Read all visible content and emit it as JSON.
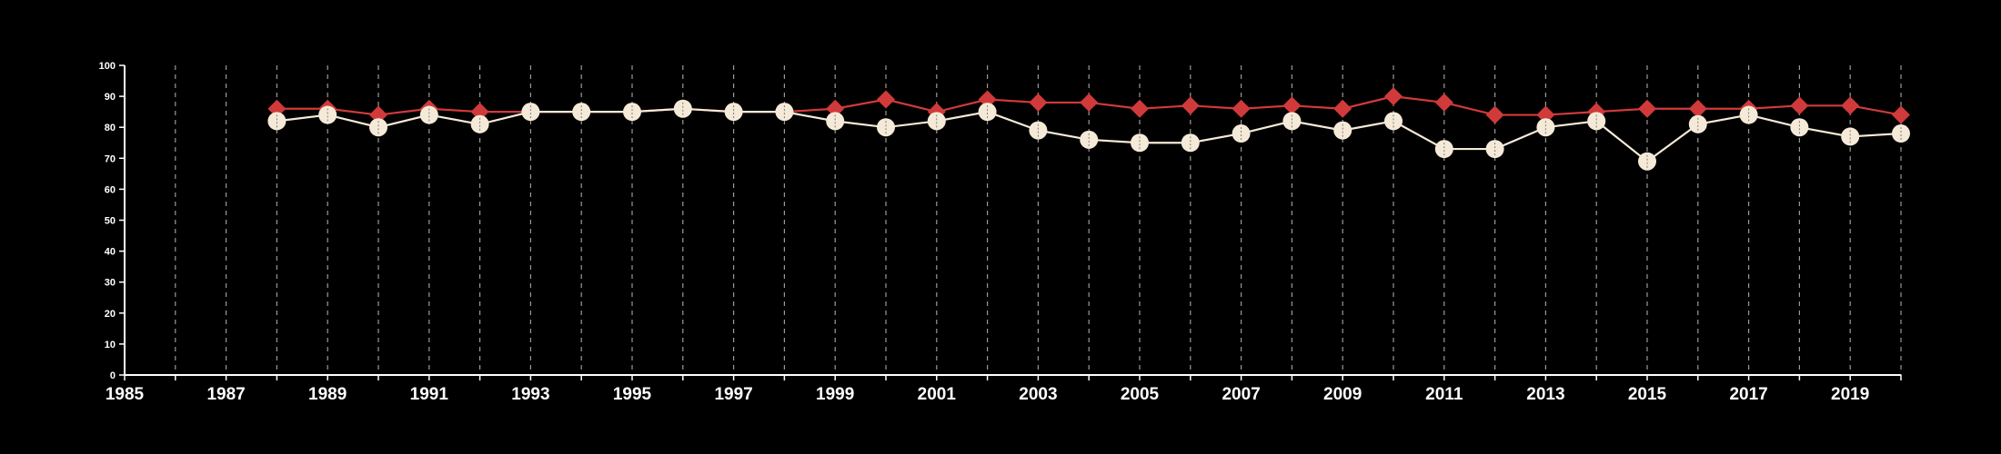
{
  "chart_data": {
    "type": "line",
    "x_range": [
      1985,
      2020
    ],
    "ylim": [
      0,
      100
    ],
    "y_ticks": [
      "0",
      "10",
      "20",
      "30",
      "40",
      "50",
      "60",
      "70",
      "80",
      "90",
      "100"
    ],
    "x_ticks": [
      "1985",
      "1987",
      "1989",
      "1991",
      "1993",
      "1995",
      "1997",
      "1999",
      "2001",
      "2003",
      "2005",
      "2007",
      "2009",
      "2011",
      "2013",
      "2015",
      "2017",
      "2019"
    ],
    "vertical_grid_years": [
      1986,
      1987,
      1988,
      1989,
      1990,
      1991,
      1992,
      1993,
      1994,
      1995,
      1996,
      1997,
      1998,
      1999,
      2000,
      2001,
      2002,
      2003,
      2004,
      2005,
      2006,
      2007,
      2008,
      2009,
      2010,
      2011,
      2012,
      2013,
      2014,
      2015,
      2016,
      2017,
      2018,
      2019,
      2020
    ],
    "grid": "vertical dashed",
    "series": [
      {
        "marker": "diamond",
        "color": "#d13a3a",
        "x": [
          1988,
          1989,
          1990,
          1991,
          1992,
          1993,
          1994,
          1995,
          1996,
          1997,
          1998,
          1999,
          2000,
          2001,
          2002,
          2003,
          2004,
          2005,
          2006,
          2007,
          2008,
          2009,
          2010,
          2011,
          2012,
          2013,
          2014,
          2015,
          2016,
          2017,
          2018,
          2019,
          2020
        ],
        "values": [
          86,
          86,
          84,
          86,
          85,
          85,
          85,
          85,
          86,
          85,
          85,
          86,
          89,
          85,
          89,
          88,
          88,
          86,
          87,
          86,
          87,
          86,
          90,
          88,
          84,
          84,
          85,
          86,
          86,
          86,
          87,
          87,
          84
        ]
      },
      {
        "marker": "circle",
        "color": "#f5ead8",
        "x": [
          1988,
          1989,
          1990,
          1991,
          1992,
          1993,
          1994,
          1995,
          1996,
          1997,
          1998,
          1999,
          2000,
          2001,
          2002,
          2003,
          2004,
          2005,
          2006,
          2007,
          2008,
          2009,
          2010,
          2011,
          2012,
          2013,
          2014,
          2015,
          2016,
          2017,
          2018,
          2019,
          2020
        ],
        "values": [
          82,
          84,
          80,
          84,
          81,
          85,
          85,
          85,
          86,
          85,
          85,
          82,
          80,
          82,
          85,
          79,
          76,
          75,
          75,
          78,
          82,
          79,
          82,
          73,
          73,
          80,
          82,
          69,
          81,
          84,
          80,
          77,
          78
        ]
      }
    ]
  }
}
